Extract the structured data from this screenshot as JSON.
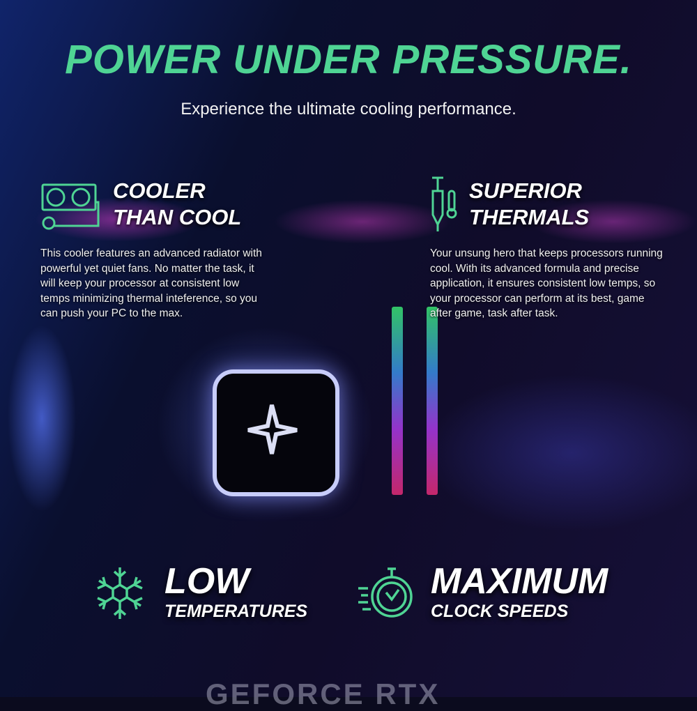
{
  "headline": "POWER UNDER PRESSURE.",
  "subheadline": "Experience the ultimate cooling performance.",
  "features": [
    {
      "icon": "radiator-icon",
      "title_line1": "COOLER",
      "title_line2": "THAN COOL",
      "body": "This cooler features an advanced radiator with powerful yet quiet fans. No matter the task, it will keep your processor at consistent low temps minimizing thermal inteference, so you can push your PC to the max."
    },
    {
      "icon": "thermal-paste-syringe-icon",
      "title_line1": "SUPERIOR",
      "title_line2": "THERMALS",
      "body": "Your unsung hero that keeps processors running cool. With its advanced formula and precise application, it ensures consistent low temps, so your processor can perform at its best, game after game, task after task."
    }
  ],
  "highlights": [
    {
      "icon": "snowflake-icon",
      "line1": "LOW",
      "line2": "TEMPERATURES"
    },
    {
      "icon": "stopwatch-icon",
      "line1": "MAXIMUM",
      "line2": "CLOCK SPEEDS"
    }
  ],
  "background_photo_text": "GEFORCE RTX",
  "colors": {
    "accent": "#4fd494",
    "background": "#0b0b1e",
    "text": "#ffffff"
  }
}
